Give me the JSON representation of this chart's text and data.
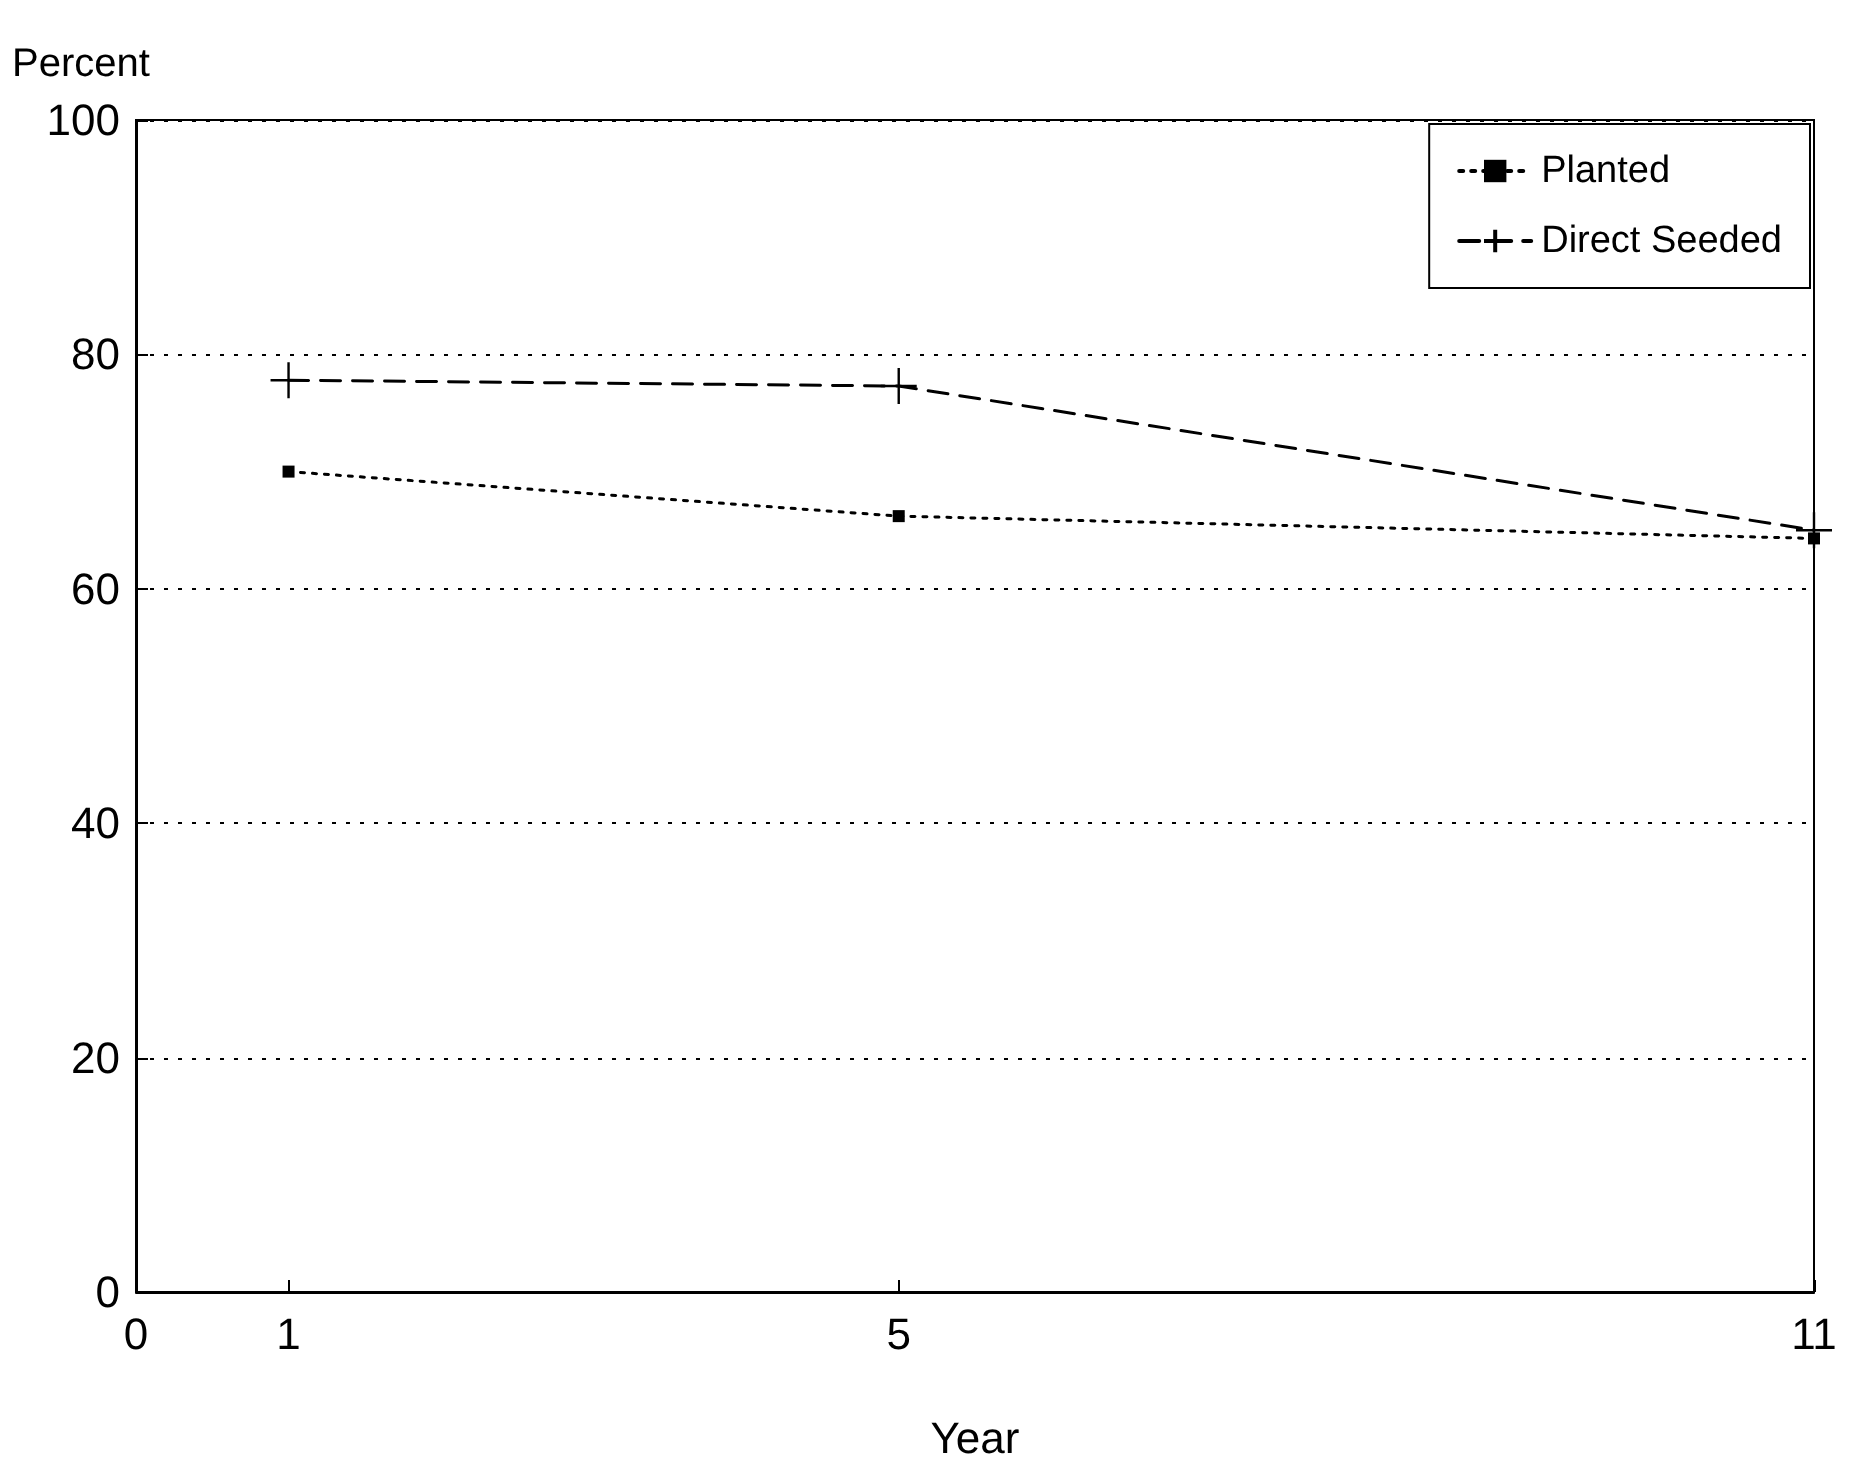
{
  "chart_data": {
    "type": "line",
    "xlabel": "Year",
    "ylabel": "Percent",
    "x": [
      1,
      5,
      11
    ],
    "series": [
      {
        "name": "Planted",
        "color": "#000000",
        "values": [
          70,
          66.2,
          64.3
        ],
        "marker": "square",
        "line_style": "dotted"
      },
      {
        "name": "Direct Seeded",
        "color": "#000000",
        "values": [
          77.8,
          77.3,
          65
        ],
        "marker": "cross",
        "line_style": "dashed"
      }
    ],
    "xlim": [
      0,
      11
    ],
    "xticks": [
      0,
      1,
      5,
      11
    ],
    "ylim": [
      0,
      100
    ],
    "yticks": [
      0,
      20,
      40,
      60,
      80,
      100
    ],
    "grid": "y",
    "legend": "top right"
  }
}
